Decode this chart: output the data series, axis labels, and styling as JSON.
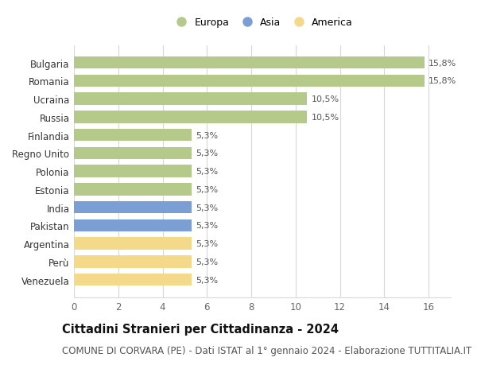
{
  "categories": [
    "Venezuela",
    "Perù",
    "Argentina",
    "Pakistan",
    "India",
    "Estonia",
    "Polonia",
    "Regno Unito",
    "Finlandia",
    "Russia",
    "Ucraina",
    "Romania",
    "Bulgaria"
  ],
  "values": [
    5.3,
    5.3,
    5.3,
    5.3,
    5.3,
    5.3,
    5.3,
    5.3,
    5.3,
    10.5,
    10.5,
    15.8,
    15.8
  ],
  "labels": [
    "5,3%",
    "5,3%",
    "5,3%",
    "5,3%",
    "5,3%",
    "5,3%",
    "5,3%",
    "5,3%",
    "5,3%",
    "10,5%",
    "10,5%",
    "15,8%",
    "15,8%"
  ],
  "colors": [
    "#f5d98a",
    "#f5d98a",
    "#f5d98a",
    "#7b9ed4",
    "#7b9ed4",
    "#b5c98a",
    "#b5c98a",
    "#b5c98a",
    "#b5c98a",
    "#b5c98a",
    "#b5c98a",
    "#b5c98a",
    "#b5c98a"
  ],
  "continent_colors": {
    "Europa": "#b5c98a",
    "Asia": "#7b9ed4",
    "America": "#f5d98a"
  },
  "title": "Cittadini Stranieri per Cittadinanza - 2024",
  "subtitle": "COMUNE DI CORVARA (PE) - Dati ISTAT al 1° gennaio 2024 - Elaborazione TUTTITALIA.IT",
  "xlim": [
    0,
    17
  ],
  "xticks": [
    0,
    2,
    4,
    6,
    8,
    10,
    12,
    14,
    16
  ],
  "background_color": "#ffffff",
  "grid_color": "#d8d8d8",
  "bar_height": 0.68,
  "title_fontsize": 10.5,
  "subtitle_fontsize": 8.5,
  "label_fontsize": 8.0,
  "tick_fontsize": 8.5,
  "legend_fontsize": 9.0
}
